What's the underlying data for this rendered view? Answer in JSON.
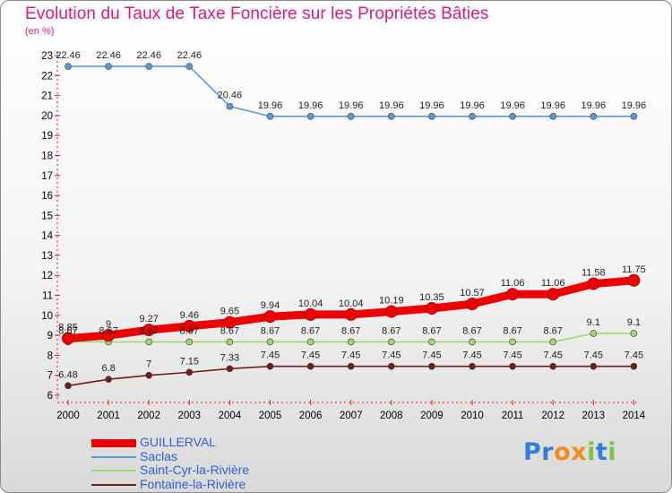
{
  "header": {
    "title": "Evolution du Taux de Taxe Foncière sur les Propriétés Bâties",
    "unit": "(en %)"
  },
  "chart_data": {
    "type": "line",
    "categories": [
      "2000",
      "2001",
      "2002",
      "2003",
      "2004",
      "2005",
      "2006",
      "2007",
      "2008",
      "2009",
      "2010",
      "2011",
      "2012",
      "2013",
      "2014"
    ],
    "ylim": [
      6,
      23
    ],
    "yticks": [
      6,
      7,
      8,
      9,
      10,
      11,
      12,
      13,
      14,
      15,
      16,
      17,
      18,
      19,
      20,
      21,
      22,
      23
    ],
    "grid": false,
    "legend_position": "bottom-left",
    "series": [
      {
        "name": "Saclas",
        "color": "#5a9ad0",
        "values": [
          22.46,
          22.46,
          22.46,
          22.46,
          20.46,
          19.96,
          19.96,
          19.96,
          19.96,
          19.96,
          19.96,
          19.96,
          19.96,
          19.96,
          19.96
        ],
        "labels": [
          "22.46",
          "22.46",
          "22.46",
          "22.46",
          "20.46",
          "19.96",
          "19.96",
          "19.96",
          "19.96",
          "19.96",
          "19.96",
          "19.96",
          "19.96",
          "19.96",
          "19.96"
        ]
      },
      {
        "name": "Saint-Cyr-la-Rivière",
        "color": "#9ed86e",
        "values": [
          8.67,
          8.67,
          8.67,
          8.67,
          8.67,
          8.67,
          8.67,
          8.67,
          8.67,
          8.67,
          8.67,
          8.67,
          8.67,
          9.1,
          9.1
        ],
        "labels": [
          "8.67",
          "8.67",
          "8.67",
          "8.67",
          "8.67",
          "8.67",
          "8.67",
          "8.67",
          "8.67",
          "8.67",
          "8.67",
          "8.67",
          "8.67",
          "9.1",
          "9.1"
        ]
      },
      {
        "name": "Fontaine-la-Rivière",
        "color": "#6b1f1f",
        "values": [
          6.48,
          6.8,
          7,
          7.15,
          7.33,
          7.45,
          7.45,
          7.45,
          7.45,
          7.45,
          7.45,
          7.45,
          7.45,
          7.45,
          7.45
        ],
        "labels": [
          "6.48",
          "6.8",
          "7",
          "7.15",
          "7.33",
          "7.45",
          "7.45",
          "7.45",
          "7.45",
          "7.45",
          "7.45",
          "7.45",
          "7.45",
          "7.45",
          "7.45"
        ]
      },
      {
        "name": "GUILLERVAL",
        "color": "#ee0000",
        "values": [
          8.85,
          9,
          9.27,
          9.46,
          9.65,
          9.94,
          10.04,
          10.04,
          10.19,
          10.35,
          10.57,
          11.06,
          11.06,
          11.58,
          11.75
        ],
        "labels": [
          "8.85",
          "9",
          "9.27",
          "9.46",
          "9.65",
          "9.94",
          "10.04",
          "10.04",
          "10.19",
          "10.35",
          "10.57",
          "11.06",
          "11.06",
          "11.58",
          "11.75"
        ]
      }
    ]
  },
  "legend": {
    "items": [
      {
        "label": "GUILLERVAL",
        "color": "#ee0000"
      },
      {
        "label": "Saclas",
        "color": "#5a9ad0"
      },
      {
        "label": "Saint-Cyr-la-Rivière",
        "color": "#9ed86e"
      },
      {
        "label": "Fontaine-la-Rivière",
        "color": "#6b1f1f"
      }
    ]
  },
  "logo": {
    "letters": [
      {
        "char": "P",
        "color": "#2f7fd8"
      },
      {
        "char": "r",
        "color": "#2f7fd8"
      },
      {
        "char": "o",
        "color": "#f28c1a"
      },
      {
        "char": "x",
        "color": "#f28c1a"
      },
      {
        "char": "i",
        "color": "#7fc241"
      },
      {
        "char": "t",
        "color": "#2f7fd8"
      },
      {
        "char": "i",
        "color": "#7fc241"
      }
    ]
  }
}
